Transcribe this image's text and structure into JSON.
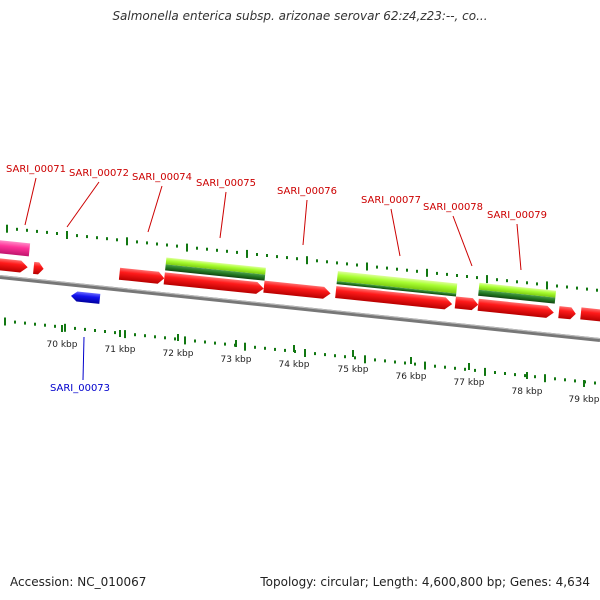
{
  "title": "Salmonella enterica subsp. arizonae serovar 62:z4,z23:--, co...",
  "footer": {
    "accession": "Accession: NC_010067",
    "summary": "Topology: circular; Length: 4,600,800 bp; Genes: 4,634"
  },
  "colors": {
    "forward_gene": "#ff0000",
    "reverse_gene": "#1010ee",
    "rrna_gene": "#ff3399",
    "cds_light": "#aaff33",
    "cds_dark": "#227722",
    "backbone": "#777777",
    "tick": "#117711",
    "label_top": "#cc0000",
    "label_bottom": "#0000cc"
  },
  "scale_ticks": [
    {
      "label": "70 kbp"
    },
    {
      "label": "71 kbp"
    },
    {
      "label": "72 kbp"
    },
    {
      "label": "73 kbp"
    },
    {
      "label": "74 kbp"
    },
    {
      "label": "75 kbp"
    },
    {
      "label": "76 kbp"
    },
    {
      "label": "77 kbp"
    },
    {
      "label": "78 kbp"
    },
    {
      "label": "79 kbp"
    }
  ],
  "gene_labels": [
    {
      "name": "SARI_00071",
      "strand": "top"
    },
    {
      "name": "SARI_00072",
      "strand": "top"
    },
    {
      "name": "SARI_00073",
      "strand": "bottom"
    },
    {
      "name": "SARI_00074",
      "strand": "top"
    },
    {
      "name": "SARI_00075",
      "strand": "top"
    },
    {
      "name": "SARI_00076",
      "strand": "top"
    },
    {
      "name": "SARI_00077",
      "strand": "top"
    },
    {
      "name": "SARI_00078",
      "strand": "top"
    },
    {
      "name": "SARI_00079",
      "strand": "top"
    }
  ]
}
